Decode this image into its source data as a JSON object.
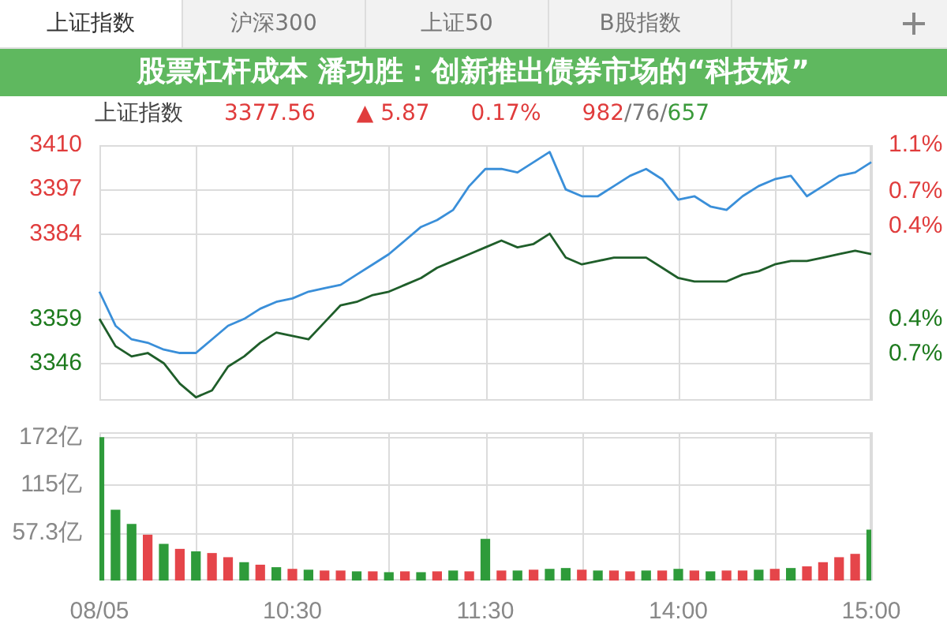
{
  "chart_data": [
    {
      "type": "line",
      "title": "上证指数",
      "annotations": [
        "上证指数",
        "沪深300",
        "上证50",
        "B股指数",
        "3377.56",
        "▲ 5.87",
        "0.17%",
        "982/76/657",
        "股票杠杆成本 潘功胜：创新推出债券市场的“科技板”"
      ],
      "categories": [
        null,
        null,
        null,
        null,
        null,
        null,
        null,
        null,
        null,
        null,
        null,
        null,
        null,
        null,
        null,
        null,
        null,
        null,
        null,
        null,
        null,
        null,
        null,
        null,
        null,
        null,
        null,
        null,
        null,
        null,
        null,
        null,
        null,
        null,
        null,
        null,
        null,
        null,
        null,
        null,
        null,
        null,
        null,
        null,
        null,
        null,
        null,
        null,
        null
      ],
      "series": [
        {
          "color": "#3a8fd9",
          "values": [
            3367,
            3357,
            3353,
            3352,
            3350,
            3349,
            3349,
            3353,
            3357,
            3359,
            3362,
            3364,
            3365,
            3367,
            3368,
            3369,
            3372,
            3375,
            3378,
            3382,
            3386,
            3388,
            3391,
            3398,
            3403,
            3403,
            3402,
            3405,
            3408,
            3397,
            3395,
            3395,
            3398,
            3401,
            3403,
            3400,
            3394,
            3395,
            3392,
            3391,
            3395,
            3398,
            3400,
            3401,
            3395,
            3398,
            3401,
            3402,
            3405
          ]
        },
        {
          "color": "#1f5e2a",
          "values": [
            3359,
            3351,
            3348,
            3349,
            3346,
            3340,
            3336,
            3338,
            3345,
            3348,
            3352,
            3355,
            3354,
            3353,
            3358,
            3363,
            3364,
            3366,
            3367,
            3369,
            3371,
            3374,
            3376,
            3378,
            3380,
            3382,
            3380,
            3381,
            3384,
            3377,
            3375,
            3376,
            3377,
            3377,
            3377,
            3374,
            3371,
            3370,
            3370,
            3370,
            3372,
            3373,
            3375,
            3376,
            3376,
            3377,
            3378,
            3379,
            3378
          ]
        }
      ],
      "ylim": [
        3335,
        3410
      ],
      "yticks": [
        3346,
        3359,
        3384,
        3397,
        3410
      ],
      "y2lim": [
        -1.1,
        1.1
      ],
      "y2ticks": [
        {
          "value": -0.7,
          "label": "0.7%"
        },
        {
          "value": -0.4,
          "label": "0.4%"
        },
        {
          "value": 0.4,
          "label": "0.4%"
        },
        {
          "value": 0.7,
          "label": "0.7%"
        },
        {
          "value": 1.1,
          "label": "1.1%"
        }
      ],
      "grid": true,
      "tick_labels": "y"
    },
    {
      "type": "bar",
      "categories": [
        "08/05",
        null,
        null,
        null,
        null,
        null,
        null,
        null,
        null,
        null,
        null,
        null,
        "10:30",
        null,
        null,
        null,
        null,
        null,
        null,
        null,
        null,
        null,
        null,
        null,
        "11:30",
        null,
        null,
        null,
        null,
        null,
        null,
        null,
        null,
        null,
        null,
        null,
        "14:00",
        null,
        null,
        null,
        null,
        null,
        null,
        null,
        null,
        null,
        null,
        null,
        "15:00"
      ],
      "values": [
        172,
        85,
        68,
        55,
        44,
        38,
        35,
        33,
        28,
        22,
        19,
        16,
        14,
        13,
        12,
        12,
        11,
        11,
        10,
        11,
        10,
        11,
        12,
        11,
        50,
        12,
        12,
        13,
        14,
        15,
        13,
        12,
        12,
        11,
        12,
        12,
        14,
        12,
        11,
        12,
        12,
        13,
        14,
        15,
        17,
        22,
        28,
        32,
        61
      ],
      "colors": [
        "#2e9b3a",
        "#2e9b3a",
        "#2e9b3a",
        "#e5454a",
        "#2e9b3a",
        "#e5454a",
        "#2e9b3a",
        "#e5454a",
        "#e5454a",
        "#2e9b3a",
        "#e5454a",
        "#2e9b3a",
        "#e5454a",
        "#2e9b3a",
        "#e5454a",
        "#e5454a",
        "#2e9b3a",
        "#e5454a",
        "#2e9b3a",
        "#e5454a",
        "#2e9b3a",
        "#e5454a",
        "#2e9b3a",
        "#e5454a",
        "#2e9b3a",
        "#e5454a",
        "#2e9b3a",
        "#e5454a",
        "#2e9b3a",
        "#2e9b3a",
        "#e5454a",
        "#2e9b3a",
        "#e5454a",
        "#e5454a",
        "#2e9b3a",
        "#e5454a",
        "#2e9b3a",
        "#e5454a",
        "#2e9b3a",
        "#e5454a",
        "#e5454a",
        "#2e9b3a",
        "#e5454a",
        "#2e9b3a",
        "#e5454a",
        "#e5454a",
        "#e5454a",
        "#e5454a",
        "#2e9b3a"
      ],
      "ylim": [
        0,
        178
      ],
      "yticks": [
        {
          "value": 57.3,
          "label": "57.3亿"
        },
        {
          "value": 115,
          "label": "115亿"
        },
        {
          "value": 172,
          "label": "172亿"
        }
      ],
      "grid": true
    }
  ]
}
